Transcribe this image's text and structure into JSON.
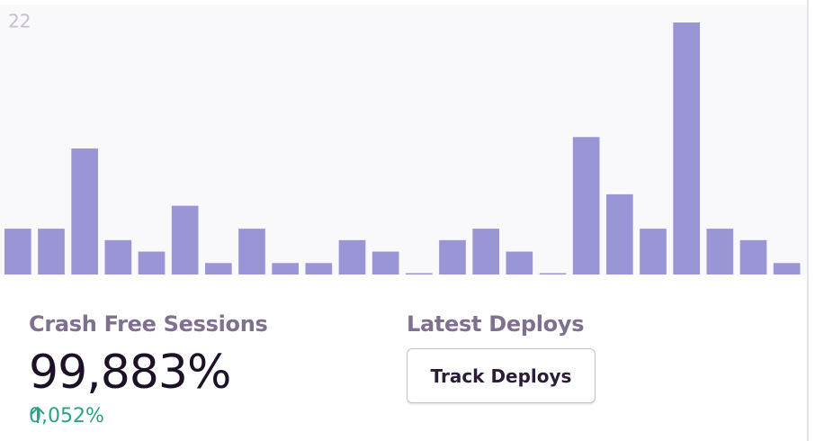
{
  "chart_data": {
    "type": "bar",
    "values": [
      4,
      4,
      11,
      3,
      2,
      6,
      1,
      4,
      1,
      1,
      3,
      2,
      0,
      3,
      4,
      2,
      0,
      12,
      7,
      4,
      22,
      4,
      3,
      1
    ],
    "color": "#9a96d6",
    "ylim": [
      0,
      22
    ],
    "yticks": [
      22
    ]
  },
  "stats": {
    "crash_free_label": "Crash Free Sessions",
    "crash_free_value": "99,883%",
    "change": "0,052%",
    "deploys_label": "Latest Deploys",
    "button": "Track Deploys"
  }
}
